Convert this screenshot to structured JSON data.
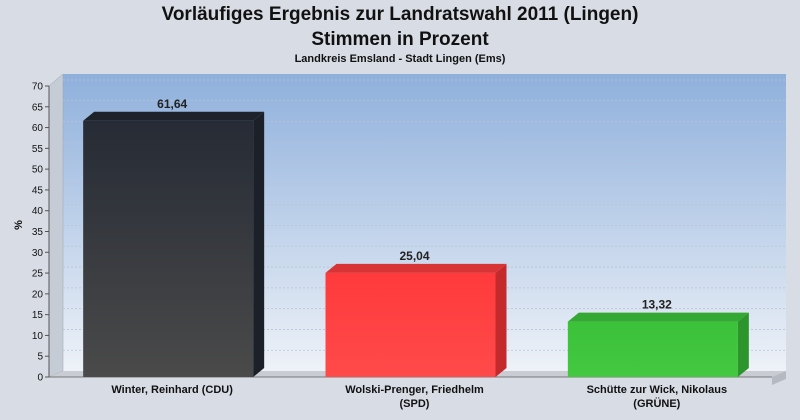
{
  "chart_data": {
    "type": "bar",
    "title": "Vorläufiges Ergebnis zur Landratswahl 2011 (Lingen)",
    "title_line2": "Stimmen in Prozent",
    "subtitle": "Landkreis Emsland - Stadt Lingen (Ems)",
    "ylabel": "%",
    "ylim": [
      0,
      70
    ],
    "yticks": [
      0,
      5,
      10,
      15,
      20,
      25,
      30,
      35,
      40,
      45,
      50,
      55,
      60,
      65,
      70
    ],
    "categories": [
      "Winter, Reinhard (CDU)",
      "Wolski-Prenger, Friedhelm\n(SPD)",
      "Schütte zur Wick, Nikolaus\n(GRÜNE)"
    ],
    "values": [
      61.64,
      25.04,
      13.32
    ],
    "value_labels": [
      "61,64",
      "25,04",
      "13,32"
    ],
    "colors": [
      "#2b2f38",
      "#ff3a3c",
      "#3cc13a"
    ],
    "grid": true,
    "legend": "none"
  }
}
